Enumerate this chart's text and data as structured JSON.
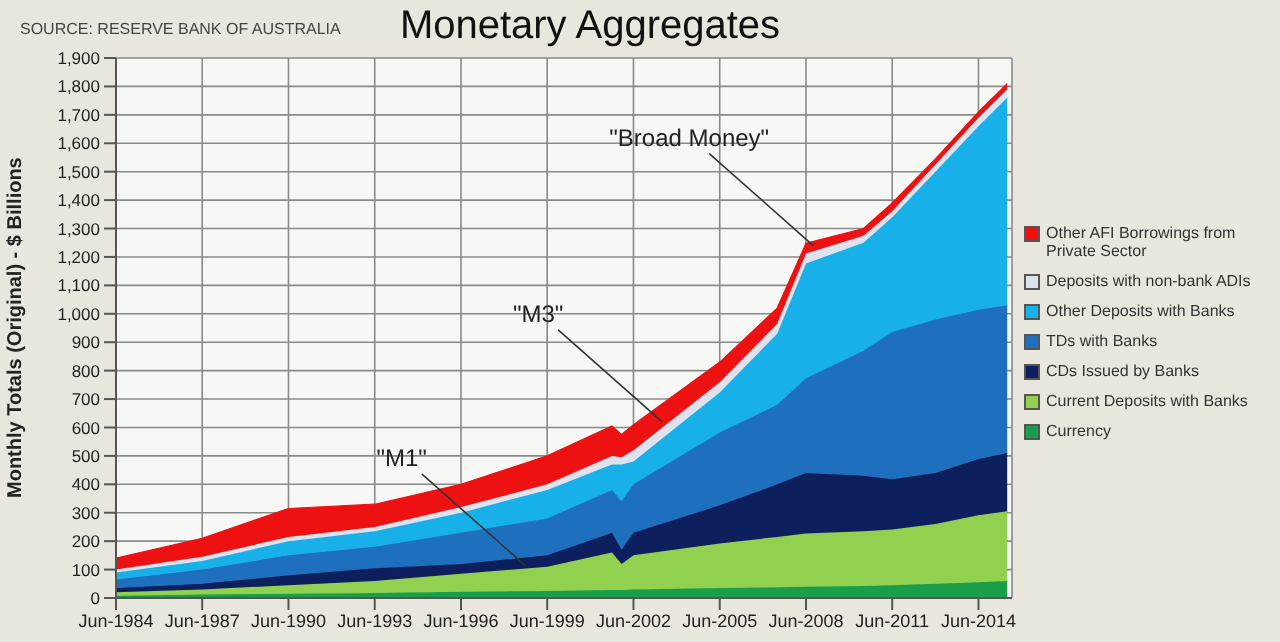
{
  "chart_data": {
    "type": "area",
    "stacked": true,
    "title": "Monetary Aggregates",
    "ylabel": "Monthly Totals (Original) - $ Billions",
    "annotations": [
      "SOURCE: RESERVE BANK OF AUSTRALIA",
      {
        "text": "\"M1\"",
        "x": "1998-09",
        "y": 113
      },
      {
        "text": "\"M3\"",
        "x": "2003-06",
        "y": 620
      },
      {
        "text": "\"Broad Money\"",
        "x": "2008-09",
        "y": 1240
      }
    ],
    "x": [
      "1984-06",
      "1987-06",
      "1990-06",
      "1993-06",
      "1996-06",
      "1999-06",
      "2001-09",
      "2002-01",
      "2002-06",
      "2005-06",
      "2007-06",
      "2008-06",
      "2010-06",
      "2011-06",
      "2012-12",
      "2014-06",
      "2015-06"
    ],
    "series": [
      {
        "name": "Currency",
        "color": "#1a9e4a",
        "values": [
          8,
          12,
          15,
          18,
          22,
          25,
          28,
          28,
          30,
          35,
          38,
          40,
          42,
          45,
          50,
          55,
          60
        ]
      },
      {
        "name": "Current Deposits with Banks",
        "color": "#92d050",
        "values": [
          12,
          18,
          30,
          42,
          63,
          85,
          132,
          92,
          120,
          157,
          177,
          187,
          193,
          196,
          210,
          236,
          245
        ]
      },
      {
        "name": "CDs Issued by Banks",
        "color": "#0d1f5c",
        "values": [
          15,
          20,
          35,
          45,
          35,
          40,
          70,
          50,
          80,
          134,
          185,
          213,
          195,
          177,
          180,
          198,
          205
        ]
      },
      {
        "name": "TDs with Banks",
        "color": "#1f6fbf",
        "values": [
          30,
          50,
          70,
          75,
          110,
          130,
          150,
          170,
          170,
          256,
          280,
          333,
          440,
          518,
          540,
          525,
          520
        ]
      },
      {
        "name": "Other Deposits with Banks",
        "color": "#17b0e8",
        "values": [
          25,
          30,
          50,
          55,
          70,
          100,
          90,
          130,
          80,
          141,
          250,
          404,
          380,
          404,
          520,
          646,
          730
        ]
      },
      {
        "name": "Deposits with non-bank ADIs",
        "color": "#dde3ee",
        "values": [
          10,
          15,
          15,
          15,
          20,
          20,
          30,
          25,
          40,
          36,
          35,
          35,
          25,
          21,
          25,
          30,
          30
        ]
      },
      {
        "name": "Other AFI Borrowings from Private Sector",
        "color": "#ee1111",
        "values": [
          40,
          65,
          100,
          80,
          80,
          100,
          105,
          80,
          90,
          71,
          55,
          36,
          25,
          29,
          20,
          20,
          20
        ]
      }
    ],
    "xlim": [
      "1984-06",
      "2015-08"
    ],
    "xticks": [
      {
        "value": "1984-06",
        "label": "Jun-1984"
      },
      {
        "value": "1987-06",
        "label": "Jun-1987"
      },
      {
        "value": "1990-06",
        "label": "Jun-1990"
      },
      {
        "value": "1993-06",
        "label": "Jun-1993"
      },
      {
        "value": "1996-06",
        "label": "Jun-1996"
      },
      {
        "value": "1999-06",
        "label": "Jun-1999"
      },
      {
        "value": "2002-06",
        "label": "Jun-2002"
      },
      {
        "value": "2005-06",
        "label": "Jun-2005"
      },
      {
        "value": "2008-06",
        "label": "Jun-2008"
      },
      {
        "value": "2011-06",
        "label": "Jun-2011"
      },
      {
        "value": "2014-06",
        "label": "Jun-2014"
      }
    ],
    "ylim": [
      0,
      1900
    ],
    "yticks": [
      0,
      100,
      200,
      300,
      400,
      500,
      600,
      700,
      800,
      900,
      {
        "value": 1000,
        "label": "1,000"
      },
      {
        "value": 1100,
        "label": "1,100"
      },
      {
        "value": 1200,
        "label": "1,200"
      },
      {
        "value": 1300,
        "label": "1,300"
      },
      {
        "value": 1400,
        "label": "1,400"
      },
      {
        "value": 1500,
        "label": "1,500"
      },
      {
        "value": 1600,
        "label": "1,600"
      },
      {
        "value": 1700,
        "label": "1,700"
      },
      {
        "value": 1800,
        "label": "1,800"
      },
      {
        "value": 1900,
        "label": "1,900"
      }
    ],
    "grid": true,
    "legend": "right"
  }
}
